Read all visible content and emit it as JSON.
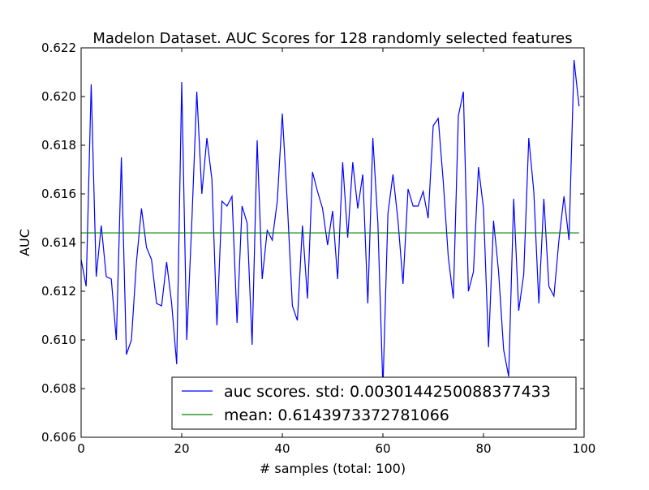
{
  "chart_data": {
    "type": "line",
    "title": "Madelon Dataset. AUC Scores for 128 randomly selected features",
    "xlabel": "# samples (total: 100)",
    "ylabel": "AUC",
    "xlim": [
      0,
      100
    ],
    "ylim": [
      0.606,
      0.622
    ],
    "x_ticks": [
      "0",
      "20",
      "40",
      "60",
      "80",
      "100"
    ],
    "y_ticks": [
      "0.606",
      "0.608",
      "0.610",
      "0.612",
      "0.614",
      "0.616",
      "0.618",
      "0.620",
      "0.622"
    ],
    "grid": false,
    "legend_position": "lower-right",
    "series": [
      {
        "name": "auc scores. std: 0.00301442500883774​33",
        "color": "#0000ff",
        "x": [
          0,
          1,
          2,
          3,
          4,
          5,
          6,
          7,
          8,
          9,
          10,
          11,
          12,
          13,
          14,
          15,
          16,
          17,
          18,
          19,
          20,
          21,
          22,
          23,
          24,
          25,
          26,
          27,
          28,
          29,
          30,
          31,
          32,
          33,
          34,
          35,
          36,
          37,
          38,
          39,
          40,
          41,
          42,
          43,
          44,
          45,
          46,
          47,
          48,
          49,
          50,
          51,
          52,
          53,
          54,
          55,
          56,
          57,
          58,
          59,
          60,
          61,
          62,
          63,
          64,
          65,
          66,
          67,
          68,
          69,
          70,
          71,
          72,
          73,
          74,
          75,
          76,
          77,
          78,
          79,
          80,
          81,
          82,
          83,
          84,
          85,
          86,
          87,
          88,
          89,
          90,
          91,
          92,
          93,
          94,
          95,
          96,
          97,
          98,
          99
        ],
        "values": [
          0.6133,
          0.6122,
          0.6205,
          0.6126,
          0.6147,
          0.6126,
          0.6125,
          0.61,
          0.6175,
          0.6094,
          0.61,
          0.6132,
          0.6154,
          0.6138,
          0.6133,
          0.6115,
          0.6114,
          0.6132,
          0.6115,
          0.609,
          0.6206,
          0.61,
          0.6148,
          0.6202,
          0.616,
          0.6183,
          0.6166,
          0.6106,
          0.6157,
          0.6155,
          0.6159,
          0.6107,
          0.6155,
          0.6148,
          0.6098,
          0.6182,
          0.6125,
          0.6145,
          0.6141,
          0.6157,
          0.6193,
          0.6156,
          0.6114,
          0.6108,
          0.6147,
          0.6117,
          0.6169,
          0.6161,
          0.6154,
          0.6139,
          0.6153,
          0.6125,
          0.6173,
          0.6142,
          0.6173,
          0.6154,
          0.6168,
          0.6115,
          0.6183,
          0.6148,
          0.608,
          0.6152,
          0.6168,
          0.6149,
          0.6123,
          0.6162,
          0.6155,
          0.6155,
          0.6161,
          0.615,
          0.6188,
          0.6191,
          0.6165,
          0.6134,
          0.6117,
          0.6192,
          0.6202,
          0.612,
          0.6128,
          0.6171,
          0.6154,
          0.6097,
          0.6149,
          0.6128,
          0.6096,
          0.6085,
          0.6158,
          0.6112,
          0.6127,
          0.6183,
          0.6161,
          0.6115,
          0.6158,
          0.6122,
          0.6118,
          0.6141,
          0.6159,
          0.6141,
          0.6215,
          0.6196
        ]
      },
      {
        "name": "mean: 0.6143973372781066",
        "color": "#008000",
        "x": [
          0,
          99
        ],
        "values": [
          0.6143973372781066,
          0.6143973372781066
        ]
      }
    ]
  }
}
